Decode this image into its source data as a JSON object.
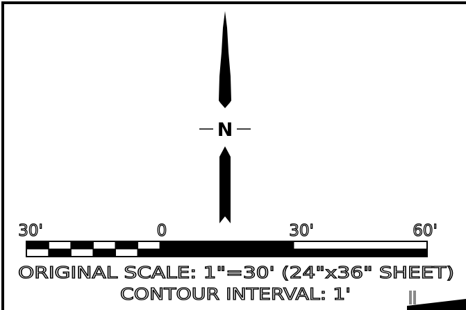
{
  "north_arrow": {
    "letter": "N"
  },
  "scale_bar": {
    "tick_labels": [
      "30'",
      "0",
      "30'",
      "60'"
    ],
    "segments": [
      {
        "from": -30,
        "to": -25,
        "fill": "black-top"
      },
      {
        "from": -25,
        "to": -20,
        "fill": "white-top"
      },
      {
        "from": -20,
        "to": -15,
        "fill": "black-top"
      },
      {
        "from": -15,
        "to": -10,
        "fill": "white-top"
      },
      {
        "from": -10,
        "to": -5,
        "fill": "black-top"
      },
      {
        "from": -5,
        "to": 0,
        "fill": "white-top"
      },
      {
        "from": 0,
        "to": 30,
        "fill": "solid-black"
      },
      {
        "from": 30,
        "to": 60,
        "fill": "white-top"
      }
    ]
  },
  "notes": {
    "scale": "ORIGINAL SCALE: 1\"=30' (24\"x36\" SHEET)",
    "contour": "CONTOUR INTERVAL: 1'"
  },
  "colors": {
    "ink": "#000000",
    "paper": "#ffffff",
    "corner_mark": "#8a8a8a"
  }
}
